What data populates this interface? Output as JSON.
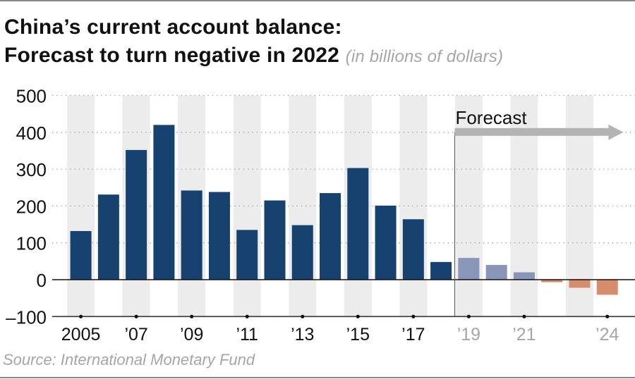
{
  "title_line1": "China’s current account balance:",
  "title_line2": "Forecast to turn negative in 2022",
  "subtitle": "(in billions of dollars)",
  "source": "Source: International Monetary Fund",
  "chart_data": {
    "type": "bar",
    "title": "China’s current account balance: Forecast to turn negative in 2022",
    "ylabel": "in billions of dollars",
    "xlabel": "",
    "ylim": [
      -100,
      500
    ],
    "yticks": [
      500,
      400,
      300,
      200,
      100,
      0,
      -100
    ],
    "ytick_labels": [
      "500",
      "400",
      "300",
      "200",
      "100",
      "0",
      "–100"
    ],
    "years": [
      2005,
      2006,
      2007,
      2008,
      2009,
      2010,
      2011,
      2012,
      2013,
      2014,
      2015,
      2016,
      2017,
      2018,
      2019,
      2020,
      2021,
      2022,
      2023,
      2024
    ],
    "values": [
      132,
      231,
      352,
      420,
      242,
      238,
      135,
      215,
      148,
      235,
      303,
      201,
      164,
      48,
      59,
      40,
      20,
      -7,
      -22,
      -41
    ],
    "forecast_start_year": 2019,
    "forecast_label": "Forecast",
    "xtick_labels": [
      {
        "year": 2005,
        "label": "2005",
        "forecast": false
      },
      {
        "year": 2007,
        "label": "’07",
        "forecast": false
      },
      {
        "year": 2009,
        "label": "’09",
        "forecast": false
      },
      {
        "year": 2011,
        "label": "’11",
        "forecast": false
      },
      {
        "year": 2013,
        "label": "’13",
        "forecast": false
      },
      {
        "year": 2015,
        "label": "’15",
        "forecast": false
      },
      {
        "year": 2017,
        "label": "’17",
        "forecast": false
      },
      {
        "year": 2019,
        "label": "’19",
        "forecast": true
      },
      {
        "year": 2021,
        "label": "’21",
        "forecast": true
      },
      {
        "year": 2024,
        "label": "’24",
        "forecast": true
      }
    ],
    "shaded_years": [
      2005,
      2007,
      2009,
      2011,
      2013,
      2015,
      2017,
      2019,
      2021,
      2023
    ],
    "grid": true,
    "colors": {
      "actual": "#17426f",
      "forecast_positive": "#8896b8",
      "forecast_negative": "#d78c6b",
      "band": "#ececec",
      "arrow": "#b3b3b3",
      "forecast_tick": "#a6a6a6"
    }
  }
}
